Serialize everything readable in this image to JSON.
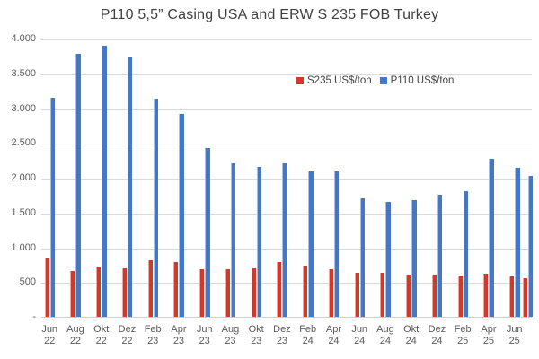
{
  "title": "P110 5,5” Casing USA and ERW S 235 FOB Turkey",
  "legend": {
    "items": [
      {
        "label": "S235 US$/ton",
        "color": "#d03a2b"
      },
      {
        "label": "P110 US$/ton",
        "color": "#4577c4"
      }
    ]
  },
  "chart_data": {
    "type": "bar",
    "title": "P110 5,5” Casing USA and ERW S 235 FOB Turkey",
    "categories": [
      "Jun 22",
      "Aug 22",
      "Okt 22",
      "Dez 22",
      "Feb 23",
      "Apr 23",
      "Jun 23",
      "Aug 23",
      "Okt 23",
      "Dez 23",
      "Feb 24",
      "Apr 24",
      "Jun 24",
      "Aug 24",
      "Okt 24",
      "Dez 24",
      "Feb 25",
      "Apr 25",
      "Jun 25",
      ""
    ],
    "series": [
      {
        "name": "S235 US$/ton",
        "color": "#d03a2b",
        "values": [
          840,
          660,
          720,
          700,
          810,
          790,
          690,
          690,
          700,
          790,
          730,
          680,
          630,
          630,
          610,
          610,
          590,
          620,
          580,
          550
        ]
      },
      {
        "name": "P110 US$/ton",
        "color": "#4577c4",
        "values": [
          3150,
          3780,
          3900,
          3730,
          3140,
          2910,
          2430,
          2210,
          2150,
          2210,
          2090,
          2090,
          1700,
          1650,
          1680,
          1760,
          1810,
          2270,
          2140,
          2020
        ]
      }
    ],
    "xlabel": "",
    "ylabel": "",
    "ylim": [
      0,
      4000
    ],
    "ytick_step": 500,
    "ytick_labels": [
      "-",
      "500",
      "1.000",
      "1.500",
      "2.000",
      "2.500",
      "3.000",
      "3.500",
      "4.000"
    ],
    "grid": "horizontal",
    "gridline_color": "#d9d9d9",
    "legend_position": "inside-top-right"
  }
}
